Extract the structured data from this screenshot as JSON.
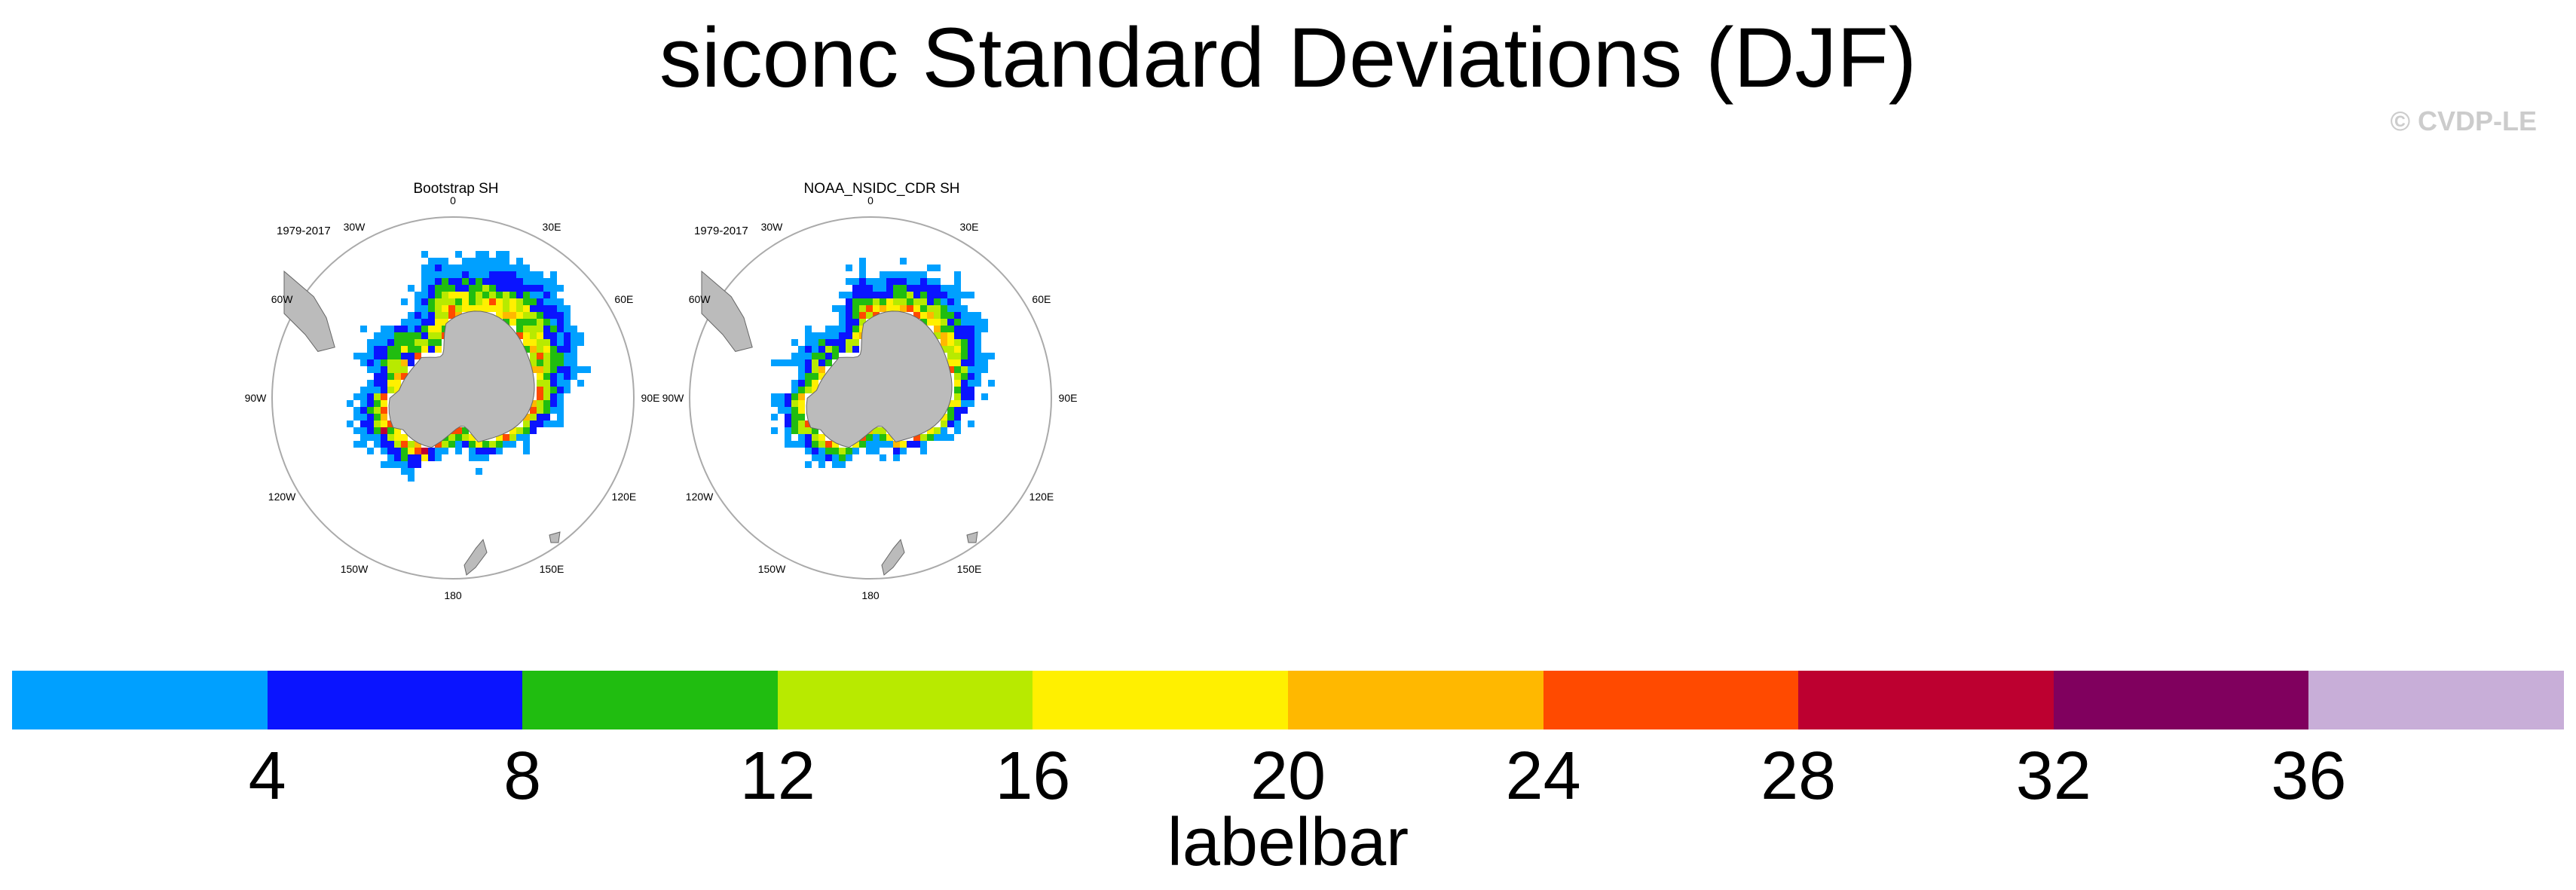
{
  "title": "siconc Standard Deviations (DJF)",
  "copyright": "© CVDP-LE",
  "panels": [
    {
      "title": "Bootstrap SH",
      "period": "1979-2017"
    },
    {
      "title": "NOAA_NSIDC_CDR SH",
      "period": "1979-2017"
    }
  ],
  "longitude_labels": [
    "0",
    "30E",
    "60E",
    "90E",
    "120E",
    "150E",
    "180",
    "150W",
    "120W",
    "90W",
    "60W",
    "30W"
  ],
  "labelbar": {
    "title": "labelbar",
    "ticks": [
      "4",
      "8",
      "12",
      "16",
      "20",
      "24",
      "28",
      "32",
      "36"
    ],
    "colors": [
      "#00a0ff",
      "#0a14ff",
      "#20bd10",
      "#b8ea00",
      "#fff000",
      "#ffb800",
      "#ff4a00",
      "#bd0030",
      "#80005e",
      "#c8aed8"
    ]
  },
  "map_colors": {
    "land": "#bbbbbb",
    "ocean": "#ffffff",
    "frame": "#aaaaaa"
  }
}
